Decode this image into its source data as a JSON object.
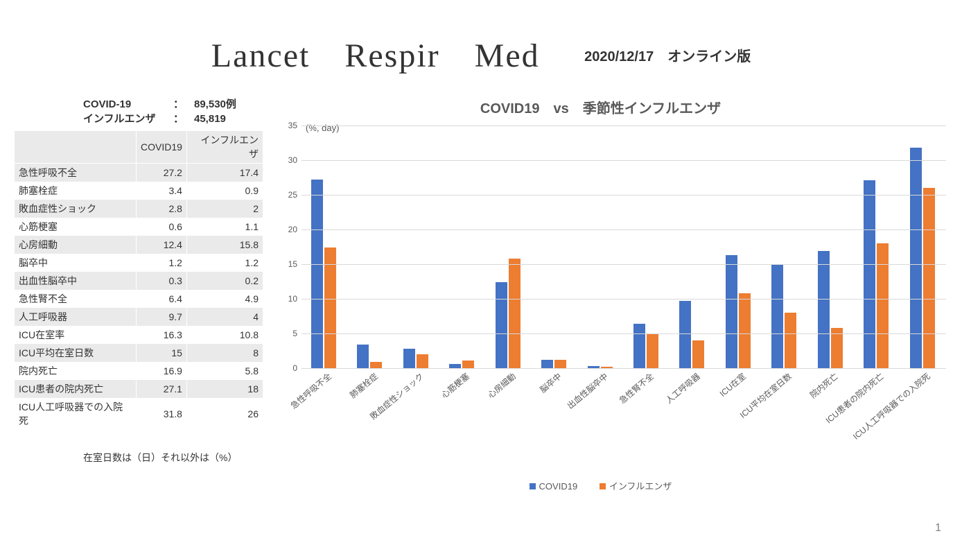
{
  "header": {
    "title_main": "Lancet　Respir　Med",
    "title_sub": "2020/12/17　オンライン版"
  },
  "counts": {
    "rows": [
      {
        "label": "COVID-19",
        "value": "89,530例"
      },
      {
        "label": "インフルエンザ",
        "value": "45,819"
      }
    ]
  },
  "table": {
    "columns": [
      "",
      "COVID19",
      "インフルエンザ"
    ],
    "rows": [
      [
        "急性呼吸不全",
        "27.2",
        "17.4"
      ],
      [
        "肺塞栓症",
        "3.4",
        "0.9"
      ],
      [
        "敗血症性ショック",
        "2.8",
        "2"
      ],
      [
        "心筋梗塞",
        "0.6",
        "1.1"
      ],
      [
        "心房細動",
        "12.4",
        "15.8"
      ],
      [
        "脳卒中",
        "1.2",
        "1.2"
      ],
      [
        "出血性脳卒中",
        "0.3",
        "0.2"
      ],
      [
        "急性腎不全",
        "6.4",
        "4.9"
      ],
      [
        "人工呼吸器",
        "9.7",
        "4"
      ],
      [
        "ICU在室率",
        "16.3",
        "10.8"
      ],
      [
        "ICU平均在室日数",
        "15",
        "8"
      ],
      [
        "院内死亡",
        "16.9",
        "5.8"
      ],
      [
        "ICU患者の院内死亡",
        "27.1",
        "18"
      ],
      [
        "ICU人工呼吸器での入院死",
        "31.8",
        "26"
      ]
    ]
  },
  "footnote": "在室日数は（日）それ以外は（%）",
  "chart": {
    "title": "COVID19　vs　季節性インフルエンザ",
    "axis_unit": "(%, day)",
    "ylim": [
      0,
      35
    ],
    "ytick_step": 5,
    "series": [
      {
        "name": "COVID19",
        "color": "#4472c4"
      },
      {
        "name": "インフルエンザ",
        "color": "#ed7d31"
      }
    ],
    "categories": [
      "急性呼吸不全",
      "肺塞栓症",
      "敗血症性ショック",
      "心筋梗塞",
      "心房細動",
      "脳卒中",
      "出血性脳卒中",
      "急性腎不全",
      "人工呼吸器",
      "ICU在室",
      "ICU平均在室日数",
      "院内死亡",
      "ICU患者の院内死亡",
      "ICU人工呼吸器での入院死"
    ],
    "values": [
      [
        27.2,
        17.4
      ],
      [
        3.4,
        0.9
      ],
      [
        2.8,
        2
      ],
      [
        0.6,
        1.1
      ],
      [
        12.4,
        15.8
      ],
      [
        1.2,
        1.2
      ],
      [
        0.3,
        0.2
      ],
      [
        6.4,
        4.9
      ],
      [
        9.7,
        4
      ],
      [
        16.3,
        10.8
      ],
      [
        15,
        8
      ],
      [
        16.9,
        5.8
      ],
      [
        27.1,
        18
      ],
      [
        31.8,
        26
      ]
    ],
    "grid_color": "#d9d9d9",
    "background_color": "#ffffff",
    "label_fontsize": 12,
    "title_fontsize": 20
  },
  "page_number": "1"
}
